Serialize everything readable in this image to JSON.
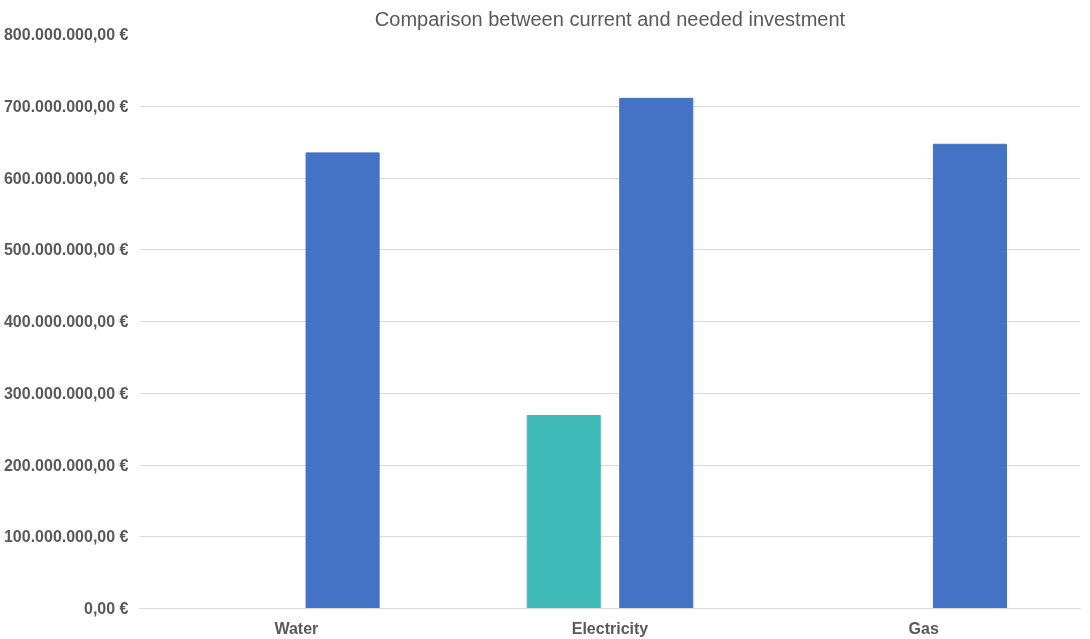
{
  "chart_data": {
    "type": "bar",
    "title": "Comparison between current and needed investment",
    "categories": [
      "Water",
      "Electricity",
      "Gas"
    ],
    "series": [
      {
        "color": "#3fbab9",
        "values": [
          null,
          269000000,
          null
        ]
      },
      {
        "color": "#4472c4",
        "values": [
          635000000,
          711000000,
          647000000
        ]
      }
    ],
    "ylim": [
      0,
      800000000
    ],
    "yticks": [
      {
        "value": 0,
        "label": "0,00 €"
      },
      {
        "value": 100000000,
        "label": "100.000.000,00 €"
      },
      {
        "value": 200000000,
        "label": "200.000.000,00 €"
      },
      {
        "value": 300000000,
        "label": "300.000.000,00 €"
      },
      {
        "value": 400000000,
        "label": "400.000.000,00 €"
      },
      {
        "value": 500000000,
        "label": "500.000.000,00 €"
      },
      {
        "value": 600000000,
        "label": "600.000.000,00 €"
      },
      {
        "value": 700000000,
        "label": "700.000.000,00 €"
      },
      {
        "value": 800000000,
        "label": "800.000.000,00 €"
      }
    ],
    "grid": "y"
  }
}
